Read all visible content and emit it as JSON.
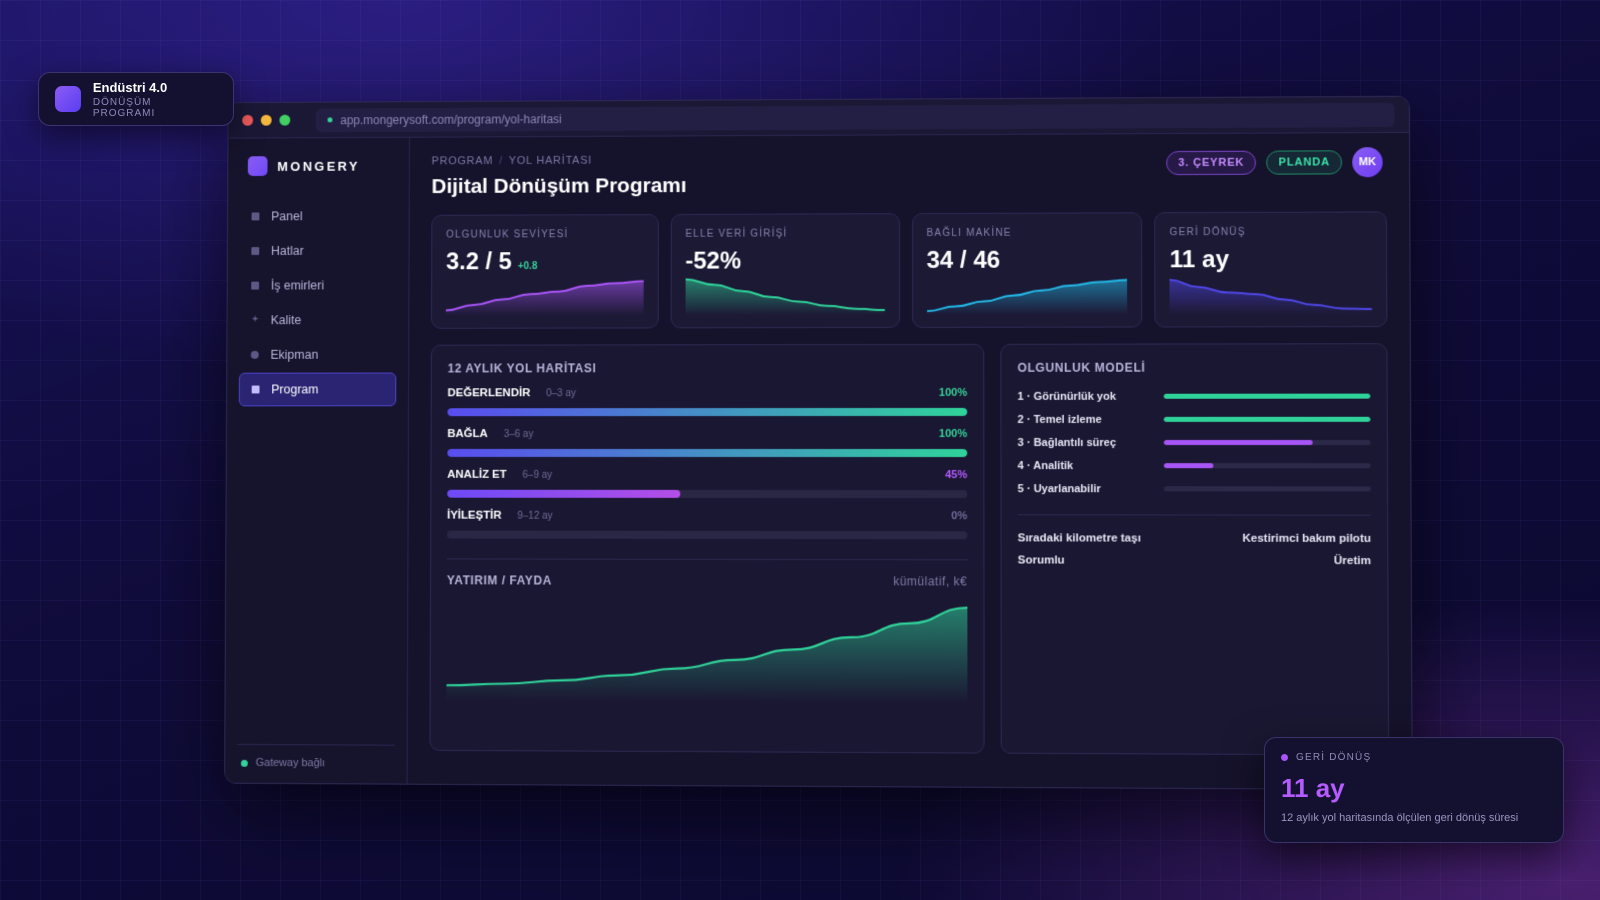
{
  "float_badge": {
    "title": "Endüstri 4.0",
    "subtitle": "DÖNÜŞÜM PROGRAMI"
  },
  "browser": {
    "url": "app.mongerysoft.com/program/yol-haritasi"
  },
  "sidebar": {
    "brand": "MONGERY",
    "items": [
      {
        "label": "Panel",
        "icon": "square-icon"
      },
      {
        "label": "Hatlar",
        "icon": "square-icon"
      },
      {
        "label": "İş emirleri",
        "icon": "list-icon"
      },
      {
        "label": "Kalite",
        "icon": "star-icon"
      },
      {
        "label": "Ekipman",
        "icon": "circle-icon"
      },
      {
        "label": "Program",
        "icon": "program-icon",
        "active": true
      }
    ],
    "status": "Gateway bağlı"
  },
  "header": {
    "breadcrumb": [
      "PROGRAM",
      "YOL HARİTASI"
    ],
    "title": "Dijital Dönüşüm Programı",
    "quarter_pill": "3. ÇEYREK",
    "status_pill": "PLANDA",
    "avatar": "MK"
  },
  "kpis": [
    {
      "label": "OLGUNLUK SEVİYESİ",
      "value": "3.2 / 5",
      "delta": "+0.8",
      "color": "#a855f7",
      "trend": [
        0.1,
        0.25,
        0.4,
        0.55,
        0.62,
        0.78,
        0.85,
        0.9
      ]
    },
    {
      "label": "ELLE VERİ GİRİŞİ",
      "value": "-52%",
      "color": "#2fd39a",
      "trend": [
        0.95,
        0.8,
        0.62,
        0.45,
        0.32,
        0.2,
        0.12,
        0.08
      ]
    },
    {
      "label": "BAĞLI MAKİNE",
      "value": "34 / 46",
      "color": "#22b8e6",
      "trend": [
        0.05,
        0.18,
        0.32,
        0.48,
        0.62,
        0.75,
        0.85,
        0.9
      ]
    },
    {
      "label": "GERİ DÖNÜŞ",
      "value": "11 ay",
      "color": "#4f46e5",
      "trend": [
        0.9,
        0.7,
        0.55,
        0.5,
        0.35,
        0.2,
        0.1,
        0.08
      ]
    }
  ],
  "roadmap": {
    "title": "12 AYLIK YOL HARİTASI",
    "phases": [
      {
        "name": "DEĞERLENDİR",
        "range": "0–3 ay",
        "pct_label": "100%",
        "progress": 1.0,
        "state": "done"
      },
      {
        "name": "BAĞLA",
        "range": "3–6 ay",
        "pct_label": "100%",
        "progress": 1.0,
        "state": "done"
      },
      {
        "name": "ANALİZ ET",
        "range": "6–9 ay",
        "pct_label": "45%",
        "progress": 0.45,
        "state": "prog"
      },
      {
        "name": "İYİLEŞTİR",
        "range": "9–12 ay",
        "pct_label": "0%",
        "progress": 0.0,
        "state": "todo"
      }
    ]
  },
  "investment": {
    "title": "YATIRIM / FAYDA",
    "unit": "kümülatif, k€",
    "trend": [
      0.02,
      0.04,
      0.08,
      0.14,
      0.22,
      0.32,
      0.44,
      0.58,
      0.74,
      0.92
    ]
  },
  "maturity": {
    "title": "OLGUNLUK MODELİ",
    "levels": [
      {
        "label": "1 · Görünürlük yok",
        "progress": 1.0,
        "color": "#2fd39a"
      },
      {
        "label": "2 · Temel izleme",
        "progress": 1.0,
        "color": "#2fd39a"
      },
      {
        "label": "3 · Bağlantılı süreç",
        "progress": 0.72,
        "color": "#a855f7"
      },
      {
        "label": "4 · Analitik",
        "progress": 0.24,
        "color": "#a855f7"
      },
      {
        "label": "5 · Uyarlanabilir",
        "progress": 0.0,
        "color": "#a855f7"
      }
    ],
    "next_milestone_label": "Sıradaki kilometre taşı",
    "next_milestone_value": "Kestirimci bakım pilotu",
    "owner_label": "Sorumlu",
    "owner_value": "Üretim"
  },
  "float_card": {
    "label": "GERİ DÖNÜŞ",
    "value": "11 ay",
    "description": "12 aylık yol haritasında ölçülen geri dönüş süresi"
  }
}
